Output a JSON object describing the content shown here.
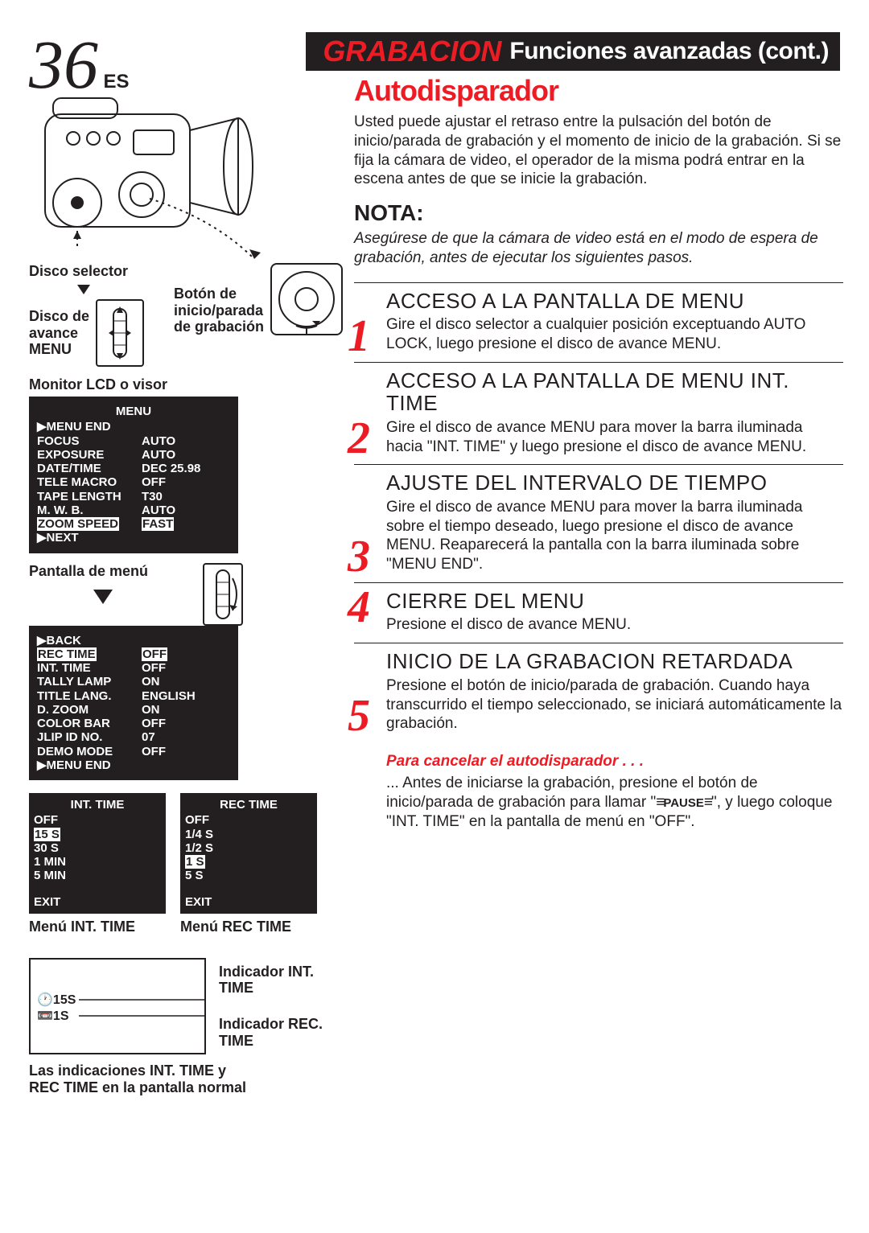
{
  "page": {
    "number": "36",
    "lang": "ES"
  },
  "header": {
    "red": "GRABACION",
    "white": "Funciones avanzadas (cont.)"
  },
  "left": {
    "discoSelector": "Disco selector",
    "discoAvance": "Disco de\navance\nMENU",
    "botonInicio": "Botón de\ninicio/parada\nde grabación",
    "monitorLabel": "Monitor LCD o visor",
    "menu1": {
      "title": "MENU",
      "rows": [
        {
          "k": "▶MENU END",
          "v": ""
        },
        {
          "k": "FOCUS",
          "v": "AUTO"
        },
        {
          "k": "EXPOSURE",
          "v": "AUTO"
        },
        {
          "k": "DATE/TIME",
          "v": "DEC 25.98"
        },
        {
          "k": "TELE MACRO",
          "v": "OFF"
        },
        {
          "k": "TAPE LENGTH",
          "v": "T30"
        },
        {
          "k": "M. W. B.",
          "v": "AUTO"
        },
        {
          "k": "ZOOM SPEED",
          "v": "FAST",
          "hl_k": true,
          "hl_v_dashed": true
        },
        {
          "k": "▶NEXT",
          "v": ""
        }
      ]
    },
    "pantallaMenu": "Pantalla de menú",
    "menu2": {
      "rows": [
        {
          "k": "▶BACK",
          "v": ""
        },
        {
          "k": "REC TIME",
          "v": "OFF",
          "hl_k": true,
          "hl_v_dashed": true
        },
        {
          "k": "INT. TIME",
          "v": "OFF"
        },
        {
          "k": "TALLY LAMP",
          "v": "ON"
        },
        {
          "k": "TITLE LANG.",
          "v": "ENGLISH"
        },
        {
          "k": "D. ZOOM",
          "v": "ON"
        },
        {
          "k": "COLOR BAR",
          "v": "OFF"
        },
        {
          "k": "JLIP ID NO.",
          "v": "07"
        },
        {
          "k": "DEMO MODE",
          "v": "OFF"
        },
        {
          "k": "▶MENU END",
          "v": ""
        }
      ]
    },
    "intTime": {
      "title": "INT. TIME",
      "items": [
        "OFF",
        "15 S",
        "30 S",
        "1 MIN",
        "5 MIN"
      ],
      "hl": "15 S",
      "exit": "EXIT",
      "label": "Menú INT. TIME"
    },
    "recTime": {
      "title": "REC TIME",
      "items": [
        "OFF",
        "1/4 S",
        "1/2 S",
        "1 S",
        "5 S"
      ],
      "hl": "1 S",
      "exit": "EXIT",
      "label": "Menú REC TIME"
    },
    "indicator": {
      "line1": "🕐15S",
      "line2": "📼1S",
      "labelInt": "Indicador INT.\nTIME",
      "labelRec": "Indicador REC.\nTIME"
    },
    "bottomCaption": "Las indicaciones INT. TIME y\nREC TIME en la pantalla normal"
  },
  "right": {
    "title": "Autodisparador",
    "intro": "Usted puede ajustar el retraso entre la pulsación del botón de inicio/parada de grabación y el momento de inicio de la grabación. Si se fija la cámara de video, el operador de la misma podrá entrar en la escena antes de que se inicie la grabación.",
    "notaTitle": "NOTA:",
    "notaBody": "Asegúrese de que la cámara de video está en el modo de espera de grabación, antes de ejecutar los siguientes pasos.",
    "steps": [
      {
        "n": "1",
        "title": "ACCESO A LA PANTALLA DE MENU",
        "body": "Gire el disco selector a cualquier posición exceptuando AUTO LOCK, luego presione el disco de avance MENU."
      },
      {
        "n": "2",
        "title": "ACCESO A LA PANTALLA DE MENU INT. TIME",
        "body": "Gire el disco de avance MENU para mover la barra iluminada hacia \"INT. TIME\" y luego presione el disco de avance MENU."
      },
      {
        "n": "3",
        "title": "AJUSTE DEL INTERVALO DE TIEMPO",
        "body": "Gire el disco de avance MENU para mover la barra iluminada sobre el tiempo deseado, luego presione el disco de avance MENU. Reaparecerá la pantalla con la barra iluminada sobre \"MENU END\"."
      },
      {
        "n": "4",
        "title": "CIERRE DEL MENU",
        "body": "Presione el disco de avance MENU.",
        "topAlign": true
      },
      {
        "n": "5",
        "title": "INICIO DE LA GRABACION RETARDADA",
        "body": "Presione el botón de inicio/parada de grabación. Cuando haya transcurrido el tiempo seleccionado, se iniciará automáticamente la grabación."
      }
    ],
    "cancelTitle": "Para cancelar el autodisparador . . .",
    "cancelBody": "... Antes de iniciarse la grabación, presione el botón de inicio/parada de grabación para llamar \"≡PAUSE≡\", y luego coloque \"INT. TIME\" en la pantalla de menú en \"OFF\"."
  },
  "colors": {
    "red": "#ed1c24",
    "black": "#231f20",
    "white": "#ffffff"
  }
}
